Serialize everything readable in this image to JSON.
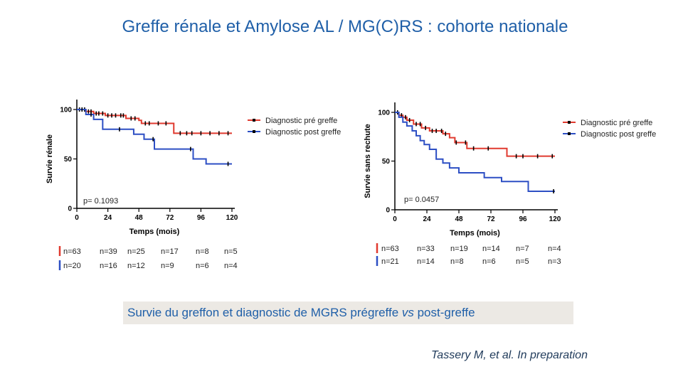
{
  "title": "Greffe rénale et Amylose AL / MG(C)RS : cohorte nationale",
  "caption": {
    "prefix": "Survie du greffon et diagnostic de MGRS prégreffe ",
    "vs": "vs",
    "suffix": " post-greffe"
  },
  "citation": "Tassery M, et al. In preparation",
  "colors": {
    "pre": "#e03a2f",
    "post": "#2d4fc4",
    "title": "#1f5fa8"
  },
  "chart_data": [
    {
      "type": "line",
      "ylabel": "Survie rénale",
      "xlabel": "Temps (mois)",
      "xticks": [
        0,
        24,
        48,
        72,
        96,
        120
      ],
      "yticks": [
        0,
        50,
        100
      ],
      "xlim": [
        0,
        120
      ],
      "ylim": [
        0,
        100
      ],
      "pvalue": "p= 0.1093",
      "series": [
        {
          "name": "Diagnostic pré greffe",
          "color": "#e03a2f",
          "x": [
            0,
            7,
            13,
            22,
            38,
            48,
            50,
            58,
            72,
            75,
            84,
            100,
            120
          ],
          "y": [
            100,
            98,
            96,
            94,
            91,
            89,
            86,
            86,
            86,
            76,
            76,
            76,
            76
          ],
          "censor_x": [
            2,
            4,
            6,
            9,
            11,
            15,
            17,
            20,
            24,
            27,
            30,
            34,
            36,
            42,
            45,
            53,
            56,
            63,
            69,
            80,
            85,
            89,
            96,
            103,
            110,
            117
          ]
        },
        {
          "name": "Diagnostic post greffe",
          "color": "#2d4fc4",
          "x": [
            0,
            7,
            13,
            20,
            35,
            44,
            52,
            60,
            84,
            90,
            100,
            114,
            120
          ],
          "y": [
            100,
            95,
            90,
            80,
            80,
            75,
            70,
            60,
            60,
            50,
            45,
            45,
            45
          ],
          "censor_x": [
            4,
            11,
            33,
            59,
            88,
            117
          ]
        }
      ],
      "risk_table": {
        "rows": [
          {
            "color": "#e03a2f",
            "counts": [
              "n=63",
              "n=39",
              "n=25",
              "n=17",
              "n=8",
              "n=5"
            ]
          },
          {
            "color": "#2d4fc4",
            "counts": [
              "n=20",
              "n=16",
              "n=12",
              "n=9",
              "n=6",
              "n=4"
            ]
          }
        ]
      }
    },
    {
      "type": "line",
      "ylabel": "Survie sans rechute",
      "xlabel": "Temps (mois)",
      "xticks": [
        0,
        24,
        48,
        72,
        96,
        120
      ],
      "yticks": [
        0,
        50,
        100
      ],
      "xlim": [
        0,
        120
      ],
      "ylim": [
        0,
        100
      ],
      "pvalue": "p= 0.0457",
      "series": [
        {
          "name": "Diagnostic pré greffe",
          "color": "#e03a2f",
          "x": [
            0,
            3,
            6,
            9,
            14,
            20,
            26,
            36,
            41,
            45,
            54,
            63,
            69,
            84,
            95,
            102,
            120
          ],
          "y": [
            100,
            97,
            95,
            92,
            88,
            84,
            81,
            78,
            74,
            69,
            63,
            63,
            63,
            55,
            55,
            55,
            55
          ],
          "censor_x": [
            2,
            5,
            8,
            11,
            16,
            19,
            23,
            28,
            31,
            35,
            38,
            46,
            53,
            59,
            70,
            91,
            96,
            107,
            118
          ]
        },
        {
          "name": "Diagnostic post greffe",
          "color": "#2d4fc4",
          "x": [
            0,
            3,
            6,
            9,
            13,
            16,
            19,
            22,
            26,
            31,
            36,
            41,
            48,
            60,
            67,
            80,
            100,
            120
          ],
          "y": [
            100,
            95,
            90,
            86,
            81,
            76,
            71,
            67,
            62,
            52,
            48,
            43,
            38,
            38,
            33,
            29,
            19,
            19
          ],
          "censor_x": [
            119
          ]
        }
      ],
      "risk_table": {
        "rows": [
          {
            "color": "#e03a2f",
            "counts": [
              "n=63",
              "n=33",
              "n=19",
              "n=14",
              "n=7",
              "n=4"
            ]
          },
          {
            "color": "#2d4fc4",
            "counts": [
              "n=21",
              "n=14",
              "n=8",
              "n=6",
              "n=5",
              "n=3"
            ]
          }
        ]
      }
    }
  ]
}
